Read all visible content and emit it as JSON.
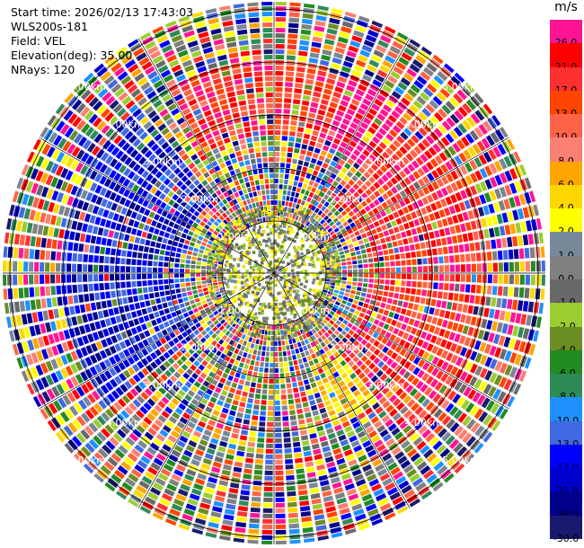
{
  "info": {
    "start_time": "Start time: 2026/02/13 17:43:03",
    "station": "WLS200s-181",
    "field": "Field: VEL",
    "elevation": "Elevation(deg): 35.00",
    "nrays": "NRays: 120"
  },
  "ppi": {
    "n_rays": 120,
    "ring_labels": [
      "1.00km",
      "2.00km",
      "3.00km",
      "4.00km",
      "5.00km"
    ],
    "max_range_km": 5.0
  },
  "colorbar": {
    "unit": "m/s",
    "entries": [
      {
        "label": "26.0",
        "color": "#ff1493",
        "text": "#000000"
      },
      {
        "label": "21.0",
        "color": "#ff0000",
        "text": "#000000"
      },
      {
        "label": "17.0",
        "color": "#ff3030",
        "text": "#000000"
      },
      {
        "label": "13.0",
        "color": "#ff4500",
        "text": "#000000"
      },
      {
        "label": "10.0",
        "color": "#ff6347",
        "text": "#000000"
      },
      {
        "label": "8.0",
        "color": "#fa8072",
        "text": "#000000"
      },
      {
        "label": "6.0",
        "color": "#ffa500",
        "text": "#000000"
      },
      {
        "label": "4.0",
        "color": "#ffd700",
        "text": "#000000"
      },
      {
        "label": "2.0",
        "color": "#ffff00",
        "text": "#000000"
      },
      {
        "label": "1.0",
        "color": "#778899",
        "text": "#000000"
      },
      {
        "label": "0.0",
        "color": "#808080",
        "text": "#000000"
      },
      {
        "label": "-1.0",
        "color": "#696969",
        "text": "#000000"
      },
      {
        "label": "-2.0",
        "color": "#9acd32",
        "text": "#000000"
      },
      {
        "label": "-4.0",
        "color": "#6b8e23",
        "text": "#000000"
      },
      {
        "label": "-6.0",
        "color": "#228b22",
        "text": "#000000"
      },
      {
        "label": "-8.0",
        "color": "#2e8b57",
        "text": "#000000"
      },
      {
        "label": "-10.0",
        "color": "#1e90ff",
        "text": "#000000"
      },
      {
        "label": "-13.0",
        "color": "#4169e1",
        "text": "#000000"
      },
      {
        "label": "-17.0",
        "color": "#0000ff",
        "text": "#000000"
      },
      {
        "label": "-21.0",
        "color": "#0000cd",
        "text": "#000000"
      },
      {
        "label": "-26.0",
        "color": "#00008b",
        "text": "#000000"
      },
      {
        "label": "-30.0",
        "color": "#191970",
        "text": "#000000"
      }
    ]
  }
}
